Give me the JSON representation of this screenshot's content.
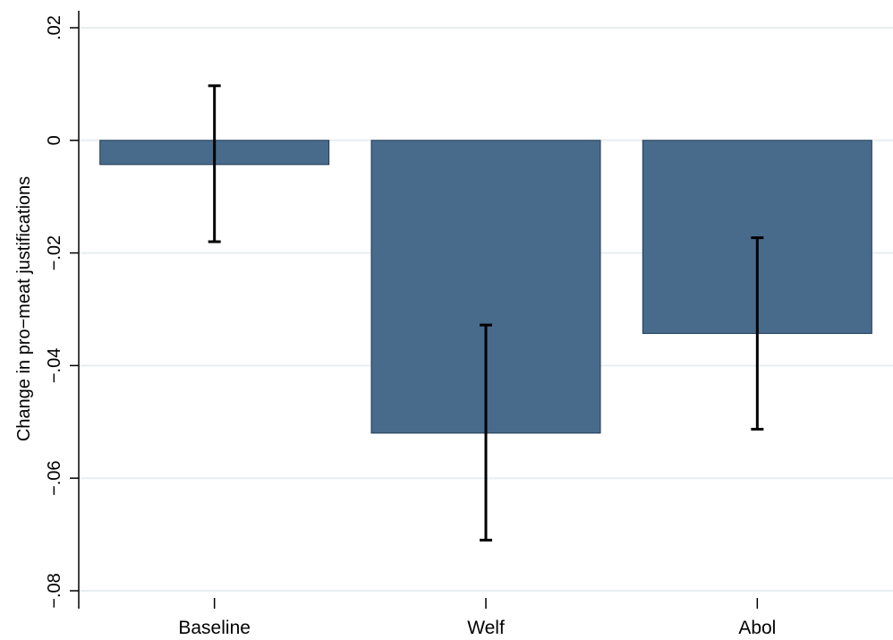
{
  "chart_data": {
    "type": "bar",
    "categories": [
      "Baseline",
      "Welf",
      "Abol"
    ],
    "values": [
      -0.0043,
      -0.052,
      -0.0343
    ],
    "error_bars": [
      {
        "low": -0.018,
        "high": 0.0097
      },
      {
        "low": -0.071,
        "high": -0.0328
      },
      {
        "low": -0.0513,
        "high": -0.0173
      }
    ],
    "title": "",
    "xlabel": "",
    "ylabel": "Change in pro−meat justifications",
    "ylim": [
      -0.08,
      0.02
    ],
    "yticks": [
      0.02,
      0,
      -0.02,
      -0.04,
      -0.06,
      -0.08
    ],
    "ytick_labels": [
      ".02",
      "0",
      "−.02",
      "−.04",
      "−.06",
      "−.08"
    ],
    "grid": true,
    "legend": "none",
    "colors": {
      "bar": "#486b8c",
      "bar_edge": "#1f3a55",
      "grid": "#e8eef0",
      "error_bar": "#000000"
    }
  }
}
